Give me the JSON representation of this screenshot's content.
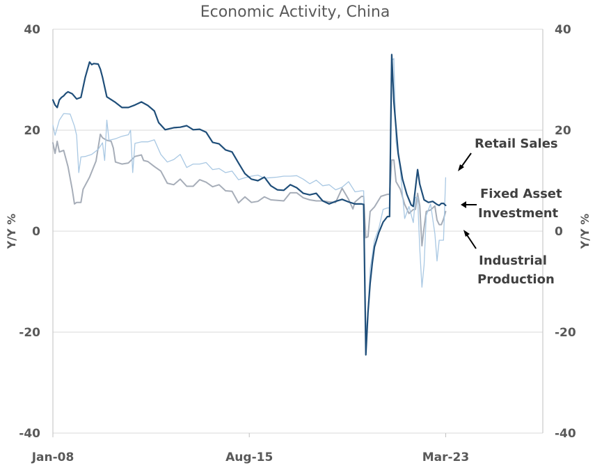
{
  "chart_data": {
    "type": "line",
    "title": "Economic Activity, China",
    "ylabel_left": "Y/Y  %",
    "ylabel_right": "Y/Y  %",
    "ylim": [
      -40,
      40
    ],
    "yticks": [
      -40,
      -20,
      0,
      20,
      40
    ],
    "xlim": [
      "2008-01",
      "2026-12"
    ],
    "xticks": [
      {
        "label": "Jan-08",
        "date": "2008-01"
      },
      {
        "label": "Aug-15",
        "date": "2015-08"
      },
      {
        "label": "Mar-23",
        "date": "2023-03"
      }
    ],
    "grid": "horizontal",
    "series": [
      {
        "name": "Fixed Asset Investment",
        "color": "#1f4e79",
        "points": [
          [
            "2008-01",
            26
          ],
          [
            "2008-02",
            25
          ],
          [
            "2008-03",
            24.5
          ],
          [
            "2008-04",
            26
          ],
          [
            "2008-05",
            26.5
          ],
          [
            "2008-06",
            26.8
          ],
          [
            "2008-07",
            27.3
          ],
          [
            "2008-08",
            27.6
          ],
          [
            "2008-10",
            27.2
          ],
          [
            "2008-12",
            26.2
          ],
          [
            "2009-02",
            26.5
          ],
          [
            "2009-04",
            30.5
          ],
          [
            "2009-06",
            33.5
          ],
          [
            "2009-07",
            33
          ],
          [
            "2009-08",
            33.2
          ],
          [
            "2009-10",
            33.1
          ],
          [
            "2009-11",
            32.1
          ],
          [
            "2009-12",
            30.5
          ],
          [
            "2010-02",
            26.6
          ],
          [
            "2010-06",
            25.5
          ],
          [
            "2010-09",
            24.5
          ],
          [
            "2010-12",
            24.5
          ],
          [
            "2011-03",
            25
          ],
          [
            "2011-06",
            25.6
          ],
          [
            "2011-09",
            24.9
          ],
          [
            "2011-12",
            23.8
          ],
          [
            "2012-02",
            21.5
          ],
          [
            "2012-05",
            20.1
          ],
          [
            "2012-09",
            20.5
          ],
          [
            "2012-12",
            20.6
          ],
          [
            "2013-03",
            20.9
          ],
          [
            "2013-06",
            20.1
          ],
          [
            "2013-09",
            20.2
          ],
          [
            "2013-12",
            19.6
          ],
          [
            "2014-03",
            17.6
          ],
          [
            "2014-06",
            17.3
          ],
          [
            "2014-09",
            16.1
          ],
          [
            "2014-12",
            15.7
          ],
          [
            "2015-03",
            13.5
          ],
          [
            "2015-06",
            11.4
          ],
          [
            "2015-09",
            10.3
          ],
          [
            "2015-12",
            10
          ],
          [
            "2016-03",
            10.7
          ],
          [
            "2016-06",
            9
          ],
          [
            "2016-09",
            8.2
          ],
          [
            "2016-12",
            8.1
          ],
          [
            "2017-03",
            9.2
          ],
          [
            "2017-06",
            8.6
          ],
          [
            "2017-09",
            7.5
          ],
          [
            "2017-12",
            7.2
          ],
          [
            "2018-03",
            7.5
          ],
          [
            "2018-06",
            6
          ],
          [
            "2018-09",
            5.4
          ],
          [
            "2018-12",
            5.9
          ],
          [
            "2019-03",
            6.3
          ],
          [
            "2019-06",
            5.8
          ],
          [
            "2019-09",
            5.4
          ],
          [
            "2019-12",
            5.4
          ],
          [
            "2020-01",
            5.3
          ],
          [
            "2020-02",
            -24.5
          ],
          [
            "2020-03",
            -16.1
          ],
          [
            "2020-04",
            -10.3
          ],
          [
            "2020-05",
            -6.3
          ],
          [
            "2020-06",
            -3.1
          ],
          [
            "2020-08",
            -0.3
          ],
          [
            "2020-10",
            1.8
          ],
          [
            "2020-12",
            2.9
          ],
          [
            "2021-01",
            2.9
          ],
          [
            "2021-02",
            35
          ],
          [
            "2021-03",
            25.6
          ],
          [
            "2021-05",
            15.4
          ],
          [
            "2021-07",
            10.3
          ],
          [
            "2021-09",
            7.3
          ],
          [
            "2021-11",
            5.2
          ],
          [
            "2021-12",
            4.9
          ],
          [
            "2022-02",
            12.2
          ],
          [
            "2022-03",
            9.3
          ],
          [
            "2022-05",
            6.2
          ],
          [
            "2022-07",
            5.7
          ],
          [
            "2022-09",
            5.9
          ],
          [
            "2022-11",
            5.3
          ],
          [
            "2022-12",
            5.1
          ],
          [
            "2023-01",
            5.5
          ],
          [
            "2023-02",
            5.5
          ],
          [
            "2023-03",
            5.1
          ]
        ]
      },
      {
        "name": "Retail Sales",
        "color": "#a9c8e3",
        "points": [
          [
            "2008-01",
            21
          ],
          [
            "2008-02",
            19
          ],
          [
            "2008-04",
            22
          ],
          [
            "2008-06",
            23.3
          ],
          [
            "2008-09",
            23.2
          ],
          [
            "2008-11",
            20.8
          ],
          [
            "2008-12",
            19
          ],
          [
            "2009-01",
            11.6
          ],
          [
            "2009-02",
            14.7
          ],
          [
            "2009-04",
            14.8
          ],
          [
            "2009-07",
            15.2
          ],
          [
            "2009-10",
            16.2
          ],
          [
            "2009-12",
            17.5
          ],
          [
            "2010-01",
            14
          ],
          [
            "2010-02",
            22
          ],
          [
            "2010-03",
            18
          ],
          [
            "2010-06",
            18.3
          ],
          [
            "2010-09",
            18.8
          ],
          [
            "2010-12",
            19.1
          ],
          [
            "2011-01",
            20
          ],
          [
            "2011-02",
            11.6
          ],
          [
            "2011-03",
            17.4
          ],
          [
            "2011-06",
            17.7
          ],
          [
            "2011-09",
            17.7
          ],
          [
            "2011-12",
            18.1
          ],
          [
            "2012-03",
            15.2
          ],
          [
            "2012-06",
            13.7
          ],
          [
            "2012-09",
            14.2
          ],
          [
            "2012-12",
            15.2
          ],
          [
            "2013-03",
            12.6
          ],
          [
            "2013-06",
            13.3
          ],
          [
            "2013-09",
            13.3
          ],
          [
            "2013-12",
            13.6
          ],
          [
            "2014-03",
            12.2
          ],
          [
            "2014-06",
            12.4
          ],
          [
            "2014-09",
            11.6
          ],
          [
            "2014-12",
            11.9
          ],
          [
            "2015-03",
            10.2
          ],
          [
            "2015-06",
            10.6
          ],
          [
            "2015-09",
            10.9
          ],
          [
            "2015-12",
            11.1
          ],
          [
            "2016-03",
            10.5
          ],
          [
            "2016-06",
            10.6
          ],
          [
            "2016-09",
            10.7
          ],
          [
            "2016-12",
            10.9
          ],
          [
            "2017-03",
            10.9
          ],
          [
            "2017-06",
            11
          ],
          [
            "2017-09",
            10.3
          ],
          [
            "2017-12",
            9.4
          ],
          [
            "2018-03",
            10.1
          ],
          [
            "2018-06",
            9
          ],
          [
            "2018-09",
            9.2
          ],
          [
            "2018-12",
            8.2
          ],
          [
            "2019-03",
            8.7
          ],
          [
            "2019-06",
            9.8
          ],
          [
            "2019-09",
            7.8
          ],
          [
            "2019-12",
            8
          ],
          [
            "2020-01",
            8
          ],
          [
            "2020-02",
            -20.5
          ],
          [
            "2020-03",
            -15.8
          ],
          [
            "2020-04",
            -7.5
          ],
          [
            "2020-06",
            -1.8
          ],
          [
            "2020-08",
            0.5
          ],
          [
            "2020-10",
            4.3
          ],
          [
            "2020-12",
            4.6
          ],
          [
            "2021-01",
            4.6
          ],
          [
            "2021-02",
            33.8
          ],
          [
            "2021-03",
            34.2
          ],
          [
            "2021-04",
            17.7
          ],
          [
            "2021-06",
            12.1
          ],
          [
            "2021-08",
            2.5
          ],
          [
            "2021-10",
            4.9
          ],
          [
            "2021-12",
            1.7
          ],
          [
            "2022-01",
            6.7
          ],
          [
            "2022-02",
            6.7
          ],
          [
            "2022-03",
            -3.5
          ],
          [
            "2022-04",
            -11.1
          ],
          [
            "2022-05",
            -6.7
          ],
          [
            "2022-06",
            3.1
          ],
          [
            "2022-08",
            5.4
          ],
          [
            "2022-10",
            -0.5
          ],
          [
            "2022-11",
            -5.9
          ],
          [
            "2022-12",
            -1.8
          ],
          [
            "2023-01",
            -1.8
          ],
          [
            "2023-02",
            -1.8
          ],
          [
            "2023-03",
            10.6
          ]
        ]
      },
      {
        "name": "Industrial Production",
        "color": "#a6adb8",
        "points": [
          [
            "2008-01",
            17.5
          ],
          [
            "2008-02",
            15.4
          ],
          [
            "2008-03",
            17.8
          ],
          [
            "2008-04",
            15.7
          ],
          [
            "2008-06",
            16
          ],
          [
            "2008-08",
            12.8
          ],
          [
            "2008-10",
            8.2
          ],
          [
            "2008-11",
            5.4
          ],
          [
            "2008-12",
            5.7
          ],
          [
            "2009-02",
            5.7
          ],
          [
            "2009-03",
            8.3
          ],
          [
            "2009-06",
            10.7
          ],
          [
            "2009-09",
            13.9
          ],
          [
            "2009-11",
            19.2
          ],
          [
            "2009-12",
            18.5
          ],
          [
            "2010-02",
            18
          ],
          [
            "2010-04",
            17.8
          ],
          [
            "2010-05",
            16.5
          ],
          [
            "2010-06",
            13.7
          ],
          [
            "2010-09",
            13.3
          ],
          [
            "2010-12",
            13.5
          ],
          [
            "2011-03",
            14.8
          ],
          [
            "2011-06",
            15.1
          ],
          [
            "2011-07",
            14
          ],
          [
            "2011-09",
            13.8
          ],
          [
            "2011-12",
            12.8
          ],
          [
            "2012-03",
            11.9
          ],
          [
            "2012-06",
            9.5
          ],
          [
            "2012-09",
            9.2
          ],
          [
            "2012-12",
            10.3
          ],
          [
            "2013-03",
            8.9
          ],
          [
            "2013-06",
            8.9
          ],
          [
            "2013-09",
            10.2
          ],
          [
            "2013-12",
            9.7
          ],
          [
            "2014-03",
            8.8
          ],
          [
            "2014-06",
            9.2
          ],
          [
            "2014-09",
            8
          ],
          [
            "2014-12",
            7.9
          ],
          [
            "2015-03",
            5.6
          ],
          [
            "2015-06",
            6.8
          ],
          [
            "2015-09",
            5.7
          ],
          [
            "2015-12",
            5.9
          ],
          [
            "2016-03",
            6.8
          ],
          [
            "2016-06",
            6.2
          ],
          [
            "2016-09",
            6.1
          ],
          [
            "2016-12",
            6
          ],
          [
            "2017-03",
            7.6
          ],
          [
            "2017-06",
            7.6
          ],
          [
            "2017-09",
            6.6
          ],
          [
            "2017-12",
            6.2
          ],
          [
            "2018-03",
            6
          ],
          [
            "2018-06",
            6
          ],
          [
            "2018-09",
            5.8
          ],
          [
            "2018-12",
            5.7
          ],
          [
            "2019-03",
            8.5
          ],
          [
            "2019-06",
            6.3
          ],
          [
            "2019-08",
            4.4
          ],
          [
            "2019-09",
            5.8
          ],
          [
            "2019-12",
            6.9
          ],
          [
            "2020-01",
            6.9
          ],
          [
            "2020-02",
            -1.3
          ],
          [
            "2020-03",
            -1.1
          ],
          [
            "2020-04",
            3.9
          ],
          [
            "2020-06",
            4.8
          ],
          [
            "2020-09",
            6.9
          ],
          [
            "2020-12",
            7.3
          ],
          [
            "2021-01",
            7.3
          ],
          [
            "2021-02",
            14.1
          ],
          [
            "2021-03",
            14.1
          ],
          [
            "2021-04",
            9.8
          ],
          [
            "2021-06",
            8.3
          ],
          [
            "2021-08",
            5.3
          ],
          [
            "2021-10",
            3.5
          ],
          [
            "2021-12",
            4.3
          ],
          [
            "2022-01",
            4.3
          ],
          [
            "2022-02",
            7.5
          ],
          [
            "2022-03",
            5
          ],
          [
            "2022-04",
            -2.9
          ],
          [
            "2022-05",
            0.7
          ],
          [
            "2022-06",
            3.9
          ],
          [
            "2022-08",
            4.2
          ],
          [
            "2022-10",
            5
          ],
          [
            "2022-11",
            2.2
          ],
          [
            "2022-12",
            1.3
          ],
          [
            "2023-01",
            1.3
          ],
          [
            "2023-02",
            2.4
          ],
          [
            "2023-03",
            3.9
          ]
        ]
      }
    ],
    "annotations": [
      {
        "lines": [
          "Retail Sales"
        ]
      },
      {
        "lines": [
          "Fixed Asset",
          "Investment"
        ]
      },
      {
        "lines": [
          "Industrial",
          "Production"
        ]
      }
    ]
  }
}
